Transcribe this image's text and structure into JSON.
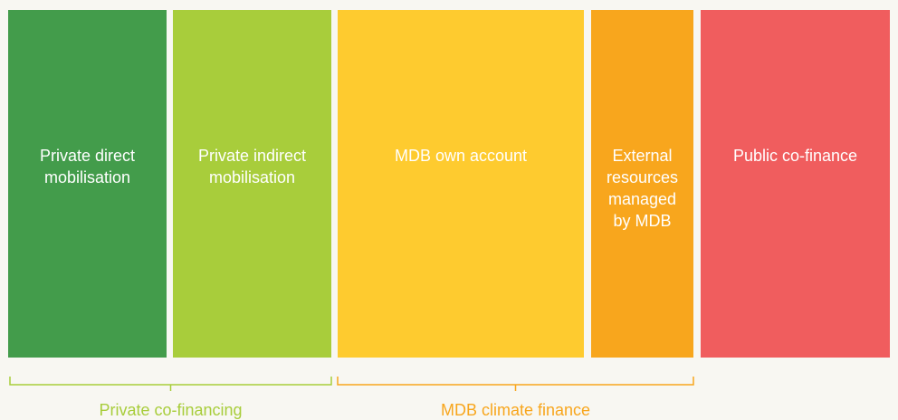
{
  "blocks": [
    {
      "lines": [
        "Private direct",
        "mobilisation"
      ],
      "color": "#439c4b"
    },
    {
      "lines": [
        "Private indirect",
        "mobilisation"
      ],
      "color": "#a8cd3b"
    },
    {
      "lines": [
        "MDB own account"
      ],
      "color": "#fecb2f"
    },
    {
      "lines": [
        "External",
        "resources",
        "managed",
        "by MDB"
      ],
      "color": "#f8a61d"
    },
    {
      "lines": [
        "Public co-finance"
      ],
      "color": "#f05d5e"
    }
  ],
  "groups": [
    {
      "label": "Private co-financing",
      "color": "#a8cd3b"
    },
    {
      "label": "MDB climate finance",
      "color": "#f8a61d"
    }
  ]
}
